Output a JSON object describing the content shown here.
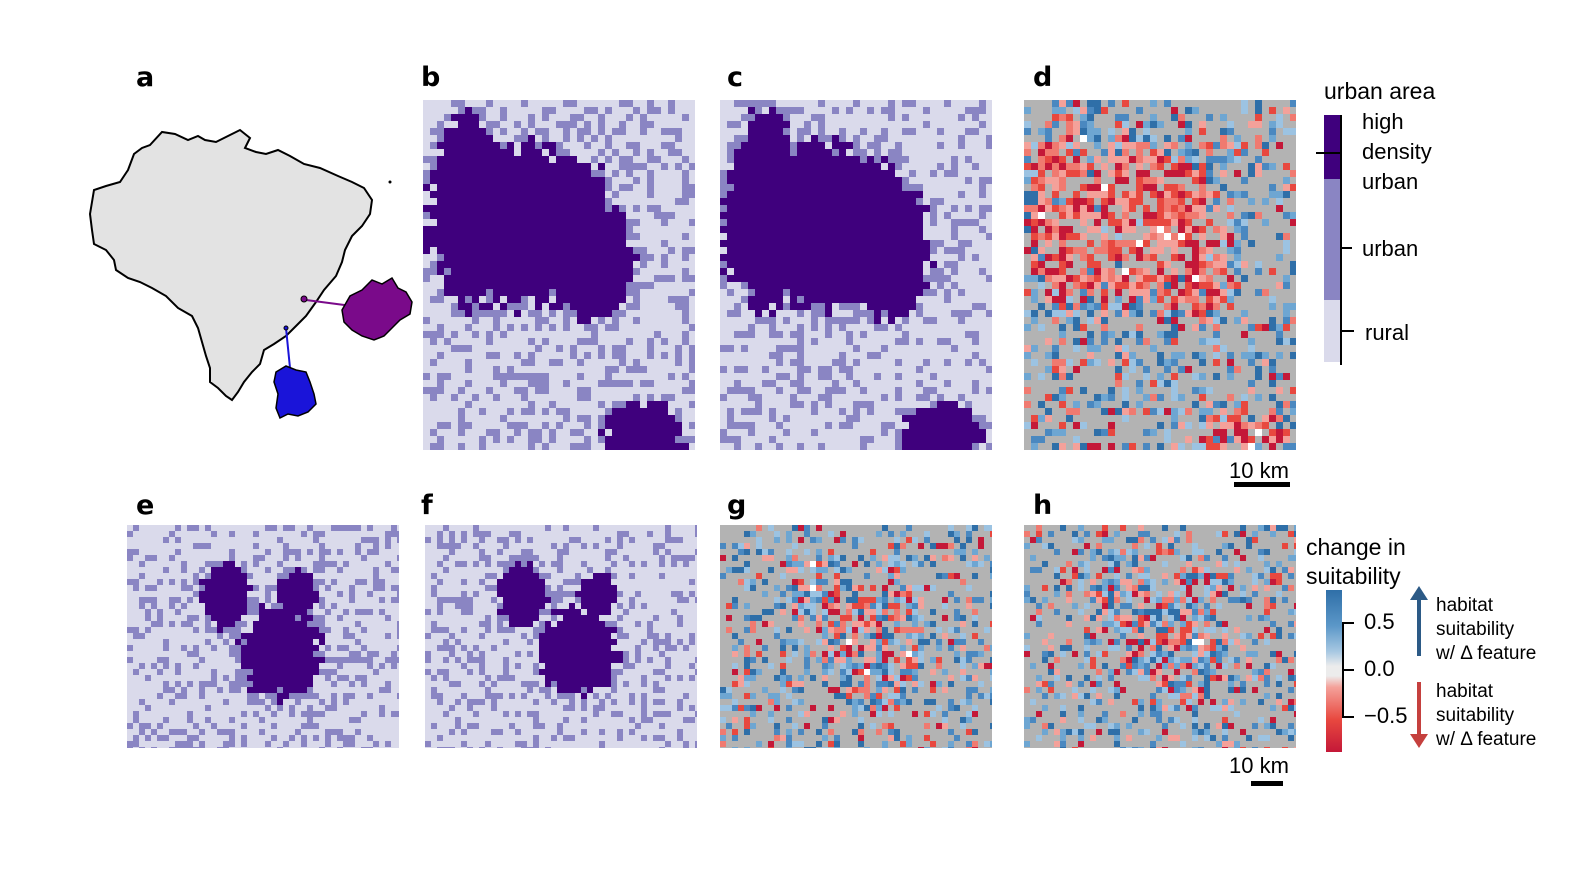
{
  "panels": [
    {
      "id": "a",
      "label": "a"
    },
    {
      "id": "b",
      "label": "b"
    },
    {
      "id": "c",
      "label": "c"
    },
    {
      "id": "d",
      "label": "d"
    },
    {
      "id": "e",
      "label": "e"
    },
    {
      "id": "f",
      "label": "f"
    },
    {
      "id": "g",
      "label": "g"
    },
    {
      "id": "h",
      "label": "h"
    }
  ],
  "urban_legend": {
    "title": "urban area",
    "levels": [
      "high density urban",
      "urban",
      "rural"
    ],
    "high_label_lines": [
      "high",
      "density",
      "urban"
    ],
    "urban_label": "urban",
    "rural_label": "rural"
  },
  "change_legend": {
    "title_lines": [
      "change in",
      "suitability"
    ],
    "ticks": [
      "0.5",
      "0.0",
      "−0.5"
    ],
    "up_text_lines": [
      "habitat",
      "suitability",
      "w/ Δ feature"
    ],
    "down_text_lines": [
      "habitat",
      "suitability",
      "w/ Δ feature"
    ]
  },
  "scale_bars": [
    {
      "label": "10 km"
    },
    {
      "label": "10 km"
    }
  ],
  "colors": {
    "high_density_urban": "#3f007d",
    "urban": "#8a85c3",
    "rural": "#dadaeb",
    "no_change": "#b3b3b3",
    "increase": "#4a88c0",
    "decrease": "#e8483f",
    "brazil_fill": "#e3e3e3",
    "region_magenta": "#7a0a8a",
    "region_blue": "#1a14d9"
  }
}
